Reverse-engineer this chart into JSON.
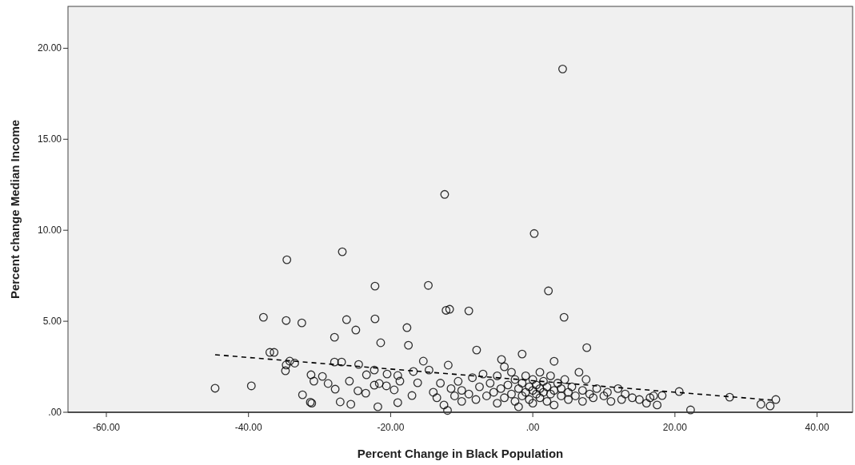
{
  "chart_data": {
    "type": "scatter",
    "xlabel": "Percent Change in Black Population",
    "ylabel": "Percent change Median Income",
    "xlim": [
      -65.4,
      45
    ],
    "ylim": [
      0,
      22.3
    ],
    "xticks": [
      {
        "value": -60,
        "label": "-60.00"
      },
      {
        "value": -40,
        "label": "-40.00"
      },
      {
        "value": -20,
        "label": "-20.00"
      },
      {
        "value": 0,
        "label": ".00"
      },
      {
        "value": 20,
        "label": "20.00"
      },
      {
        "value": 40,
        "label": "40.00"
      }
    ],
    "yticks": [
      {
        "value": 0,
        "label": ".00"
      },
      {
        "value": 5,
        "label": "5.00"
      },
      {
        "value": 10,
        "label": "10.00"
      },
      {
        "value": 15,
        "label": "15.00"
      },
      {
        "value": 20,
        "label": "20.00"
      }
    ],
    "grid": false,
    "series": [
      {
        "marker": "circle",
        "color": "#000000",
        "x": [
          4.2,
          -12.4,
          0.2,
          -26.8,
          -34.6,
          -14.7,
          -22.2,
          2.2,
          -12.2,
          -11.7,
          -9.0,
          4.4,
          -37.9,
          -34.7,
          -32.5,
          -22.2,
          -26.2,
          -24.9,
          -17.7,
          -27.9,
          -17.5,
          -21.4,
          -7.9,
          7.6,
          -11.9,
          3.0,
          -1.5,
          -4.4,
          -37.0,
          -36.4,
          -34.7,
          -33.5,
          -44.7,
          -39.6,
          -32.4,
          -31.3,
          -31.1,
          -27.1,
          -25.6,
          -21.8,
          -31.2,
          -30.8,
          -34.8,
          -34.2,
          -29.6,
          -28.8,
          -27.8,
          -27.9,
          -26.9,
          -24.5,
          -25.8,
          -24.6,
          -23.5,
          -22.3,
          -23.4,
          -22.3,
          -20.5,
          -19.0,
          -18.7,
          -21.6,
          -20.6,
          -19.5,
          -16.8,
          -15.4,
          -14.6,
          -16.2,
          -17.0,
          -19.0,
          -14,
          -13.5,
          -13,
          -12.5,
          -12,
          -11.5,
          -11,
          -10.5,
          -10,
          -10,
          -9,
          -8.5,
          -8,
          -7.5,
          -7,
          -6.5,
          -6,
          -5.5,
          -5,
          -5,
          -4.5,
          -4,
          -4,
          -3.5,
          -3,
          -3,
          -2.5,
          -2.5,
          -2,
          -2,
          -1.5,
          -1.5,
          -1,
          -1,
          -0.5,
          -0.5,
          0,
          0,
          0,
          0.5,
          0.5,
          1,
          1,
          1,
          1.5,
          1.5,
          2,
          2,
          2.5,
          2.5,
          3,
          3,
          3.5,
          4,
          4,
          4.5,
          5,
          5,
          5.5,
          6,
          6.5,
          7,
          7,
          7.5,
          8,
          8.5,
          9,
          10,
          10.5,
          11,
          12,
          12.5,
          13,
          14,
          15,
          16,
          16.5,
          17,
          17.5,
          18.2,
          20.6,
          22.2,
          27.7,
          32.1,
          33.4,
          34.2
        ],
        "values": [
          18.86,
          11.97,
          9.82,
          8.82,
          8.38,
          6.97,
          6.93,
          6.67,
          5.6,
          5.66,
          5.57,
          5.22,
          5.22,
          5.04,
          4.91,
          5.13,
          5.09,
          4.52,
          4.65,
          4.12,
          3.68,
          3.82,
          3.42,
          3.55,
          2.59,
          2.8,
          3.2,
          2.9,
          3.29,
          3.29,
          2.6,
          2.7,
          1.32,
          1.45,
          0.96,
          0.55,
          0.5,
          0.57,
          0.44,
          0.3,
          2.06,
          1.71,
          2.28,
          2.81,
          1.97,
          1.58,
          1.27,
          2.76,
          2.76,
          2.63,
          1.71,
          1.18,
          1.05,
          2.32,
          2.06,
          1.49,
          2.1,
          2.02,
          1.71,
          1.58,
          1.45,
          1.23,
          2.24,
          2.81,
          2.32,
          1.62,
          0.92,
          0.53,
          1.1,
          0.8,
          1.6,
          0.4,
          0.1,
          1.3,
          0.9,
          1.7,
          0.6,
          1.2,
          1.0,
          1.9,
          0.7,
          1.4,
          2.1,
          0.9,
          1.6,
          1.1,
          0.5,
          2.0,
          1.3,
          0.8,
          2.5,
          1.5,
          1.0,
          2.2,
          0.6,
          1.8,
          1.3,
          0.3,
          1.6,
          0.9,
          1.1,
          2.0,
          1.4,
          0.7,
          1.2,
          1.8,
          0.5,
          1.0,
          1.5,
          1.3,
          0.8,
          2.2,
          1.1,
          1.7,
          0.6,
          1.4,
          1.0,
          2.0,
          1.2,
          0.4,
          1.6,
          0.9,
          1.3,
          1.8,
          0.7,
          1.1,
          1.4,
          0.9,
          2.2,
          1.2,
          0.6,
          1.8,
          1.0,
          0.8,
          1.3,
          0.9,
          1.1,
          0.6,
          1.3,
          0.7,
          1.0,
          0.8,
          0.7,
          0.5,
          0.8,
          0.9,
          0.4,
          0.92,
          1.14,
          0.13,
          0.83,
          0.44,
          0.35,
          0.7
        ]
      },
      {
        "type": "line",
        "line_style": "dashed",
        "color": "#000000",
        "x": [
          -44.7,
          33.9
        ],
        "values": [
          3.16,
          0.66
        ]
      }
    ]
  }
}
